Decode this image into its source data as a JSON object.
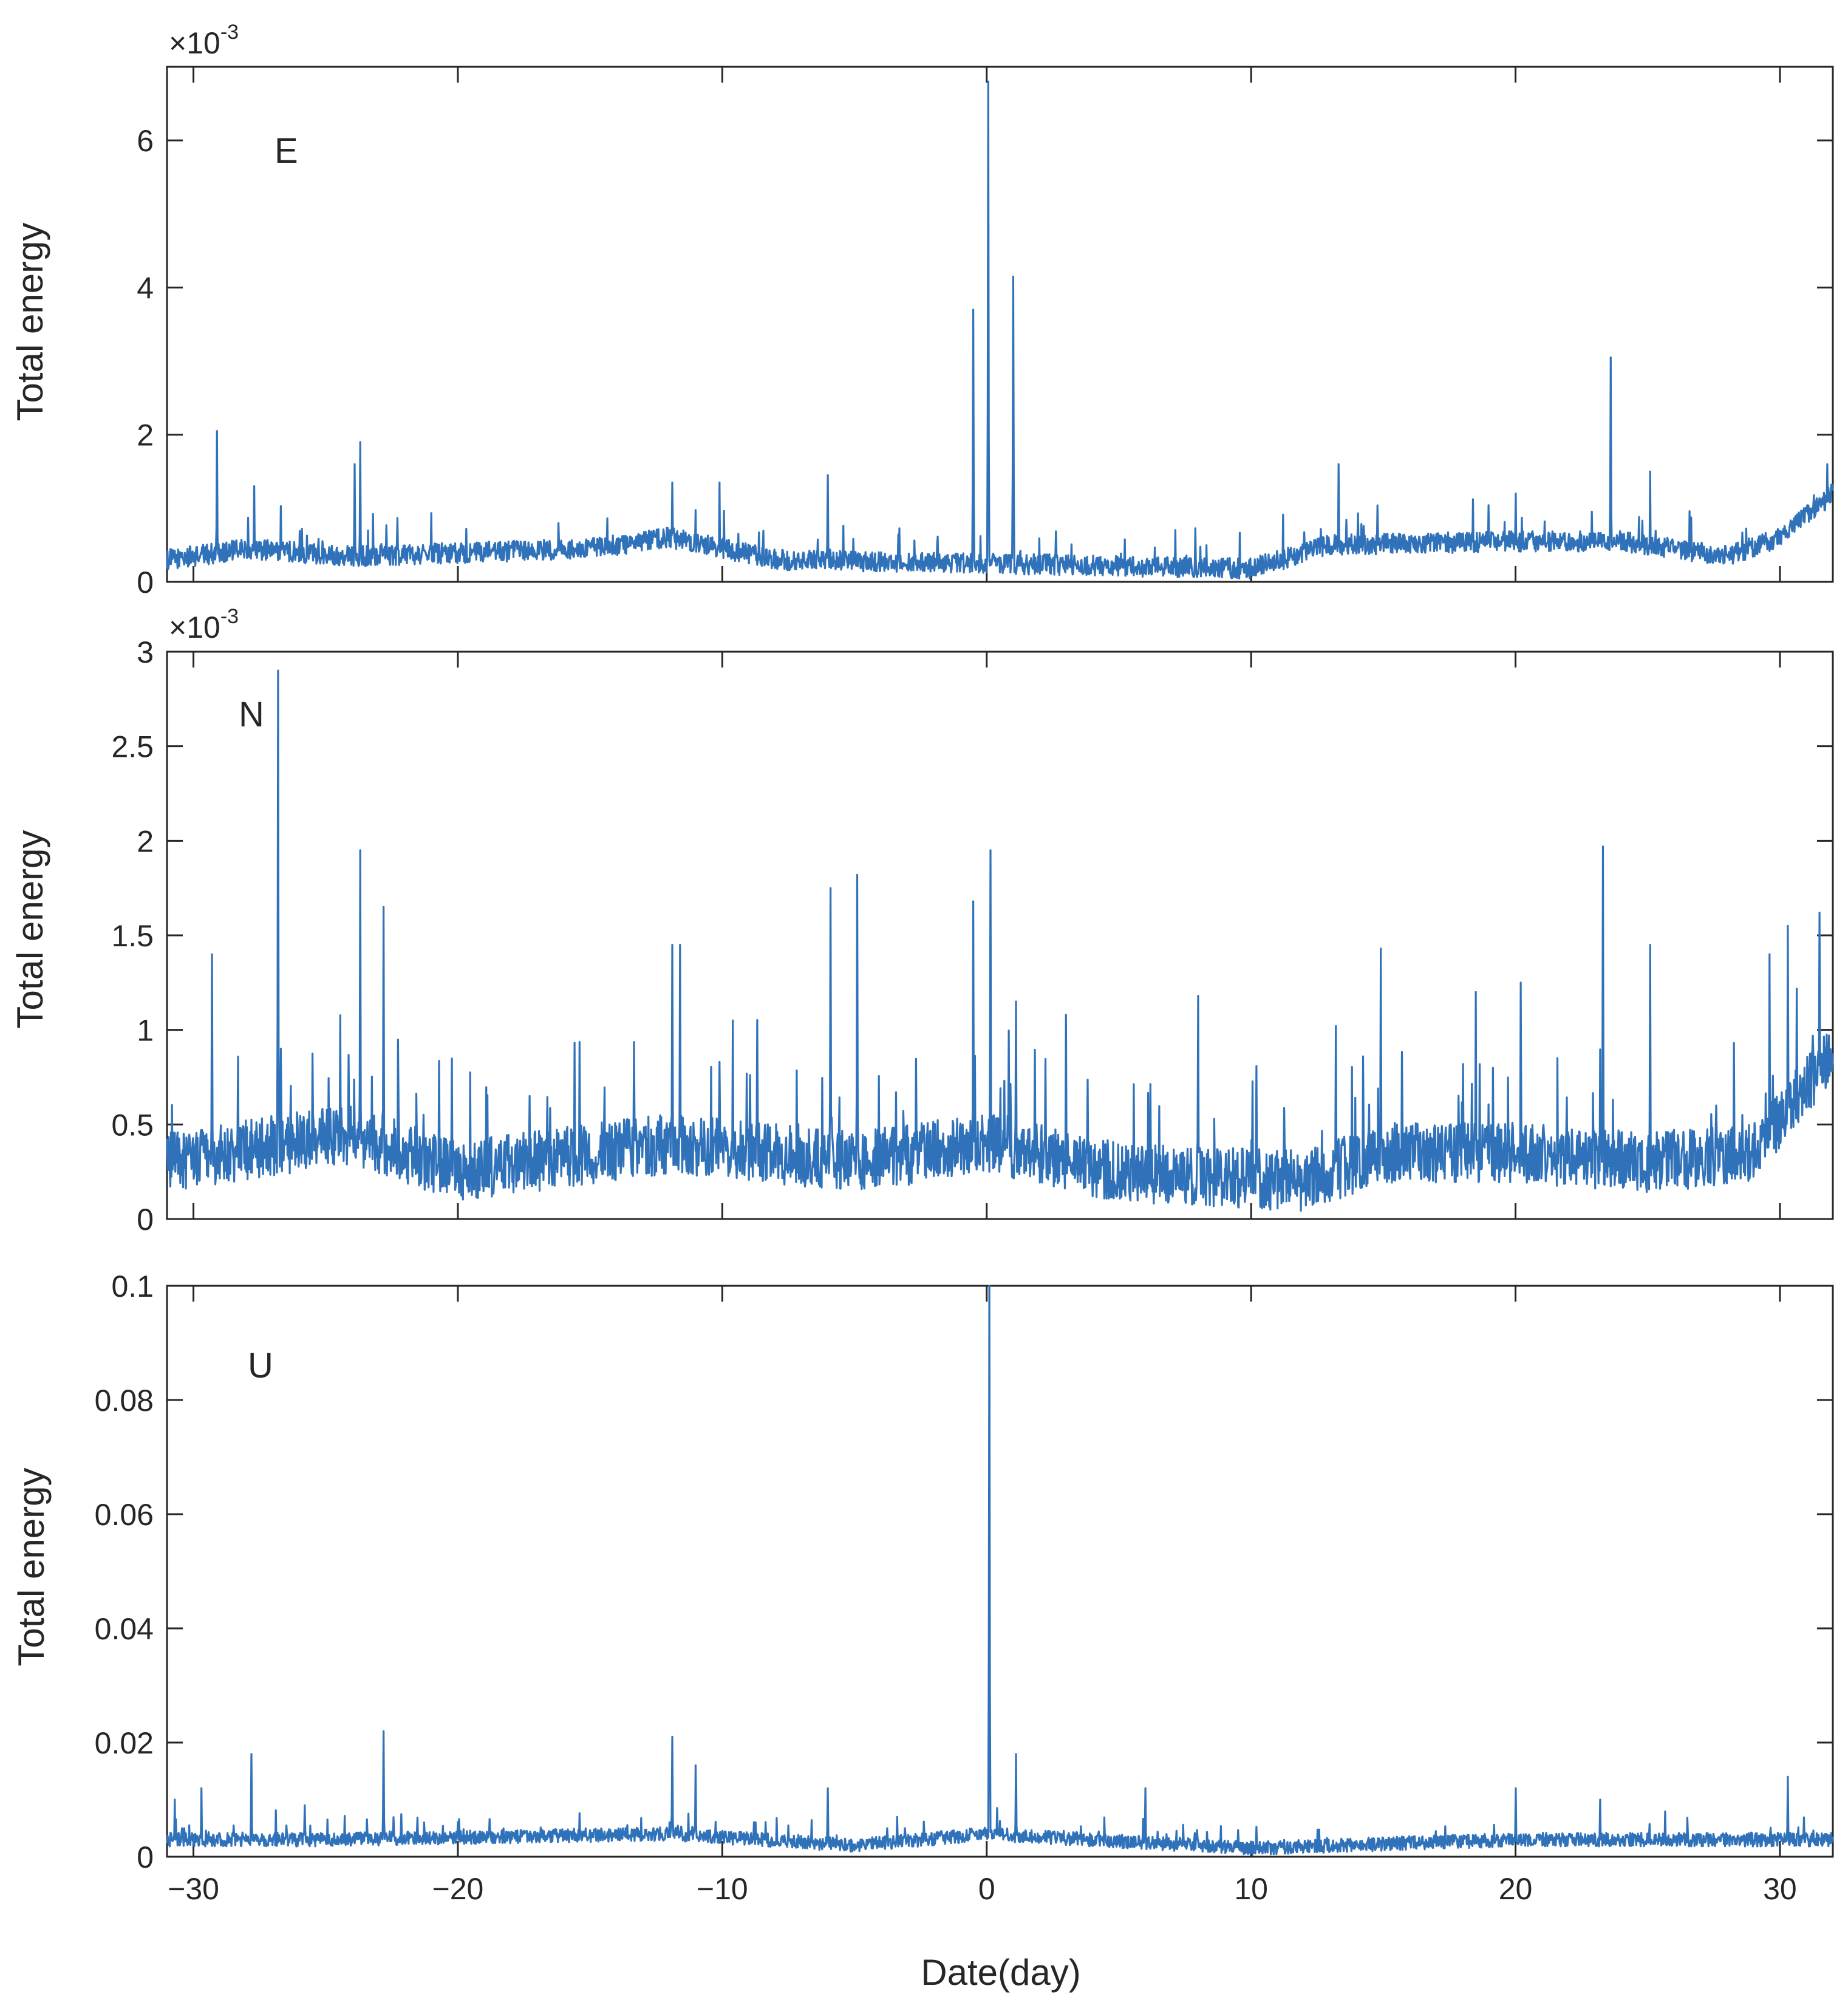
{
  "chart_data": [
    {
      "type": "line",
      "panel": "E",
      "title": "",
      "xlabel": "",
      "ylabel": "Total energy",
      "exponent_label": "×10",
      "exponent_power": "-3",
      "xlim": [
        -31,
        32
      ],
      "ylim": [
        0,
        7
      ],
      "yticks": [
        0,
        2,
        4,
        6
      ],
      "ytick_labels": [
        "0",
        "2",
        "4",
        "6"
      ],
      "color": "#3072BA",
      "baseline": 0.3,
      "noise": 0.14,
      "trend": [
        [
          -31,
          0.3
        ],
        [
          -28,
          0.45
        ],
        [
          -24,
          0.35
        ],
        [
          -15,
          0.45
        ],
        [
          -12,
          0.6
        ],
        [
          -8,
          0.3
        ],
        [
          0,
          0.25
        ],
        [
          10,
          0.18
        ],
        [
          13,
          0.5
        ],
        [
          20,
          0.55
        ],
        [
          24,
          0.55
        ],
        [
          28,
          0.35
        ],
        [
          30,
          0.6
        ],
        [
          32,
          1.2
        ]
      ],
      "peaks": [
        [
          -29.1,
          2.05
        ],
        [
          -27.7,
          1.3
        ],
        [
          -23.7,
          1.9
        ],
        [
          -23.9,
          1.6
        ],
        [
          -11.9,
          1.35
        ],
        [
          -10.1,
          1.35
        ],
        [
          -6,
          1.45
        ],
        [
          -0.5,
          3.7
        ],
        [
          0.05,
          6.8
        ],
        [
          1,
          4.15
        ],
        [
          13.3,
          1.6
        ],
        [
          20,
          1.2
        ],
        [
          23.6,
          3.05
        ],
        [
          25.1,
          1.5
        ],
        [
          31.8,
          1.6
        ]
      ]
    },
    {
      "type": "line",
      "panel": "N",
      "title": "",
      "xlabel": "",
      "ylabel": "Total energy",
      "exponent_label": "×10",
      "exponent_power": "-3",
      "xlim": [
        -31,
        32
      ],
      "ylim": [
        0,
        3
      ],
      "yticks": [
        0,
        0.5,
        1,
        1.5,
        2,
        2.5,
        3
      ],
      "ytick_labels": [
        "0",
        "0.5",
        "1",
        "1.5",
        "2",
        "2.5",
        "3"
      ],
      "color": "#3072BA",
      "baseline": 0.28,
      "noise": 0.16,
      "trend": [
        [
          -31,
          0.3
        ],
        [
          -24,
          0.45
        ],
        [
          -20,
          0.25
        ],
        [
          -12,
          0.4
        ],
        [
          -5,
          0.3
        ],
        [
          0,
          0.4
        ],
        [
          5,
          0.25
        ],
        [
          12,
          0.2
        ],
        [
          15,
          0.35
        ],
        [
          20,
          0.35
        ],
        [
          25,
          0.3
        ],
        [
          29,
          0.35
        ],
        [
          31,
          0.7
        ],
        [
          32,
          0.9
        ]
      ],
      "peaks": [
        [
          -29.3,
          1.4
        ],
        [
          -26.8,
          2.9
        ],
        [
          -23.7,
          1.95
        ],
        [
          -22.8,
          1.65
        ],
        [
          -11.9,
          1.45
        ],
        [
          -11.6,
          1.45
        ],
        [
          -9.6,
          1.05
        ],
        [
          -5.9,
          1.75
        ],
        [
          -4.9,
          1.82
        ],
        [
          -0.5,
          1.68
        ],
        [
          0.15,
          1.95
        ],
        [
          1.1,
          1.15
        ],
        [
          3,
          1.08
        ],
        [
          8,
          1.18
        ],
        [
          13.2,
          1.02
        ],
        [
          14.9,
          1.43
        ],
        [
          18.5,
          1.2
        ],
        [
          20.2,
          1.25
        ],
        [
          23.3,
          1.97
        ],
        [
          25.1,
          1.45
        ],
        [
          29.6,
          1.4
        ],
        [
          30.3,
          1.55
        ],
        [
          31.5,
          1.62
        ]
      ]
    },
    {
      "type": "line",
      "panel": "U",
      "title": "",
      "xlabel": "Date(day)",
      "ylabel": "Total energy",
      "exponent_label": "",
      "exponent_power": "",
      "xlim": [
        -31,
        32
      ],
      "ylim": [
        0,
        0.1
      ],
      "yticks": [
        0,
        0.02,
        0.04,
        0.06,
        0.08,
        0.1
      ],
      "ytick_labels": [
        "0",
        "0.02",
        "0.04",
        "0.06",
        "0.08",
        "0.1"
      ],
      "xticks": [
        -30,
        -20,
        -10,
        0,
        10,
        20,
        30
      ],
      "xtick_labels": [
        "−30",
        "−20",
        "−10",
        "0",
        "10",
        "20",
        "30"
      ],
      "color": "#3072BA",
      "baseline": 0.002,
      "noise": 0.0012,
      "trend": [
        [
          -31,
          0.003
        ],
        [
          -25,
          0.003
        ],
        [
          -12,
          0.004
        ],
        [
          -5,
          0.002
        ],
        [
          0,
          0.004
        ],
        [
          10,
          0.0015
        ],
        [
          20,
          0.003
        ],
        [
          32,
          0.003
        ]
      ],
      "peaks": [
        [
          -30.7,
          0.01
        ],
        [
          -29.7,
          0.012
        ],
        [
          -27.8,
          0.018
        ],
        [
          -25.8,
          0.009
        ],
        [
          -22.8,
          0.022
        ],
        [
          -11.9,
          0.021
        ],
        [
          -11,
          0.016
        ],
        [
          -6,
          0.012
        ],
        [
          0.1,
          0.1
        ],
        [
          1.1,
          0.018
        ],
        [
          6,
          0.012
        ],
        [
          20,
          0.012
        ],
        [
          23.2,
          0.01
        ],
        [
          30.3,
          0.014
        ]
      ]
    }
  ]
}
